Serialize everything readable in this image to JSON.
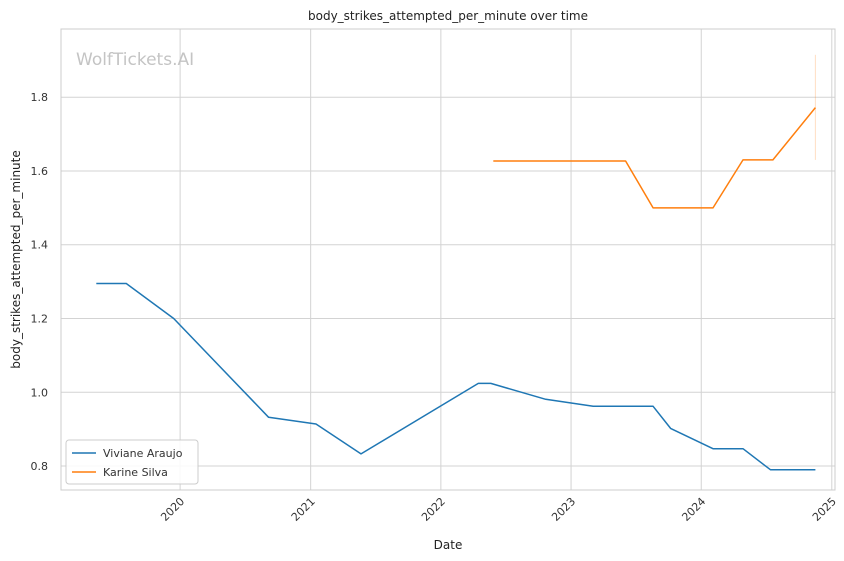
{
  "chart_data": {
    "type": "line",
    "title": "body_strikes_attempted_per_minute over time",
    "xlabel": "Date",
    "ylabel": "body_strikes_attempted_per_minute",
    "watermark": "WolfTickets.AI",
    "xlim": [
      "2019-02-01",
      "2025-01-10"
    ],
    "ylim": [
      0.735,
      1.985
    ],
    "x_ticks": [
      "2020-01-01",
      "2021-01-01",
      "2022-01-01",
      "2023-01-01",
      "2024-01-01",
      "2025-01-01"
    ],
    "x_tick_labels": [
      "2020",
      "2021",
      "2022",
      "2023",
      "2024",
      "2025"
    ],
    "y_ticks": [
      0.8,
      1.0,
      1.2,
      1.4,
      1.6,
      1.8
    ],
    "y_tick_labels": [
      "0.8",
      "1.0",
      "1.2",
      "1.4",
      "1.6",
      "1.8"
    ],
    "grid": true,
    "legend_position": "bottom-left",
    "series": [
      {
        "name": "Viviane Araujo",
        "color": "#1f77b4",
        "x": [
          "2019-05-11",
          "2019-08-03",
          "2019-12-14",
          "2020-09-05",
          "2021-01-16",
          "2021-05-22",
          "2022-04-16",
          "2022-05-21",
          "2022-10-22",
          "2023-03-04",
          "2023-08-19",
          "2023-10-07",
          "2024-02-03",
          "2024-04-27",
          "2024-07-13",
          "2024-11-16"
        ],
        "y": [
          1.295,
          1.295,
          1.2,
          0.932,
          0.914,
          0.833,
          1.024,
          1.024,
          0.981,
          0.962,
          0.962,
          0.902,
          0.847,
          0.847,
          0.79,
          0.79
        ]
      },
      {
        "name": "Karine Silva",
        "color": "#ff7f0e",
        "x": [
          "2022-05-28",
          "2023-06-03",
          "2023-08-19",
          "2024-02-03",
          "2024-04-27",
          "2024-07-20",
          "2024-11-16"
        ],
        "y": [
          1.627,
          1.627,
          1.5,
          1.5,
          1.63,
          1.63,
          1.772
        ]
      }
    ],
    "error_band": {
      "series": "Karine Silva",
      "x": "2024-11-16",
      "y_low": 1.63,
      "y_high": 1.915
    }
  }
}
